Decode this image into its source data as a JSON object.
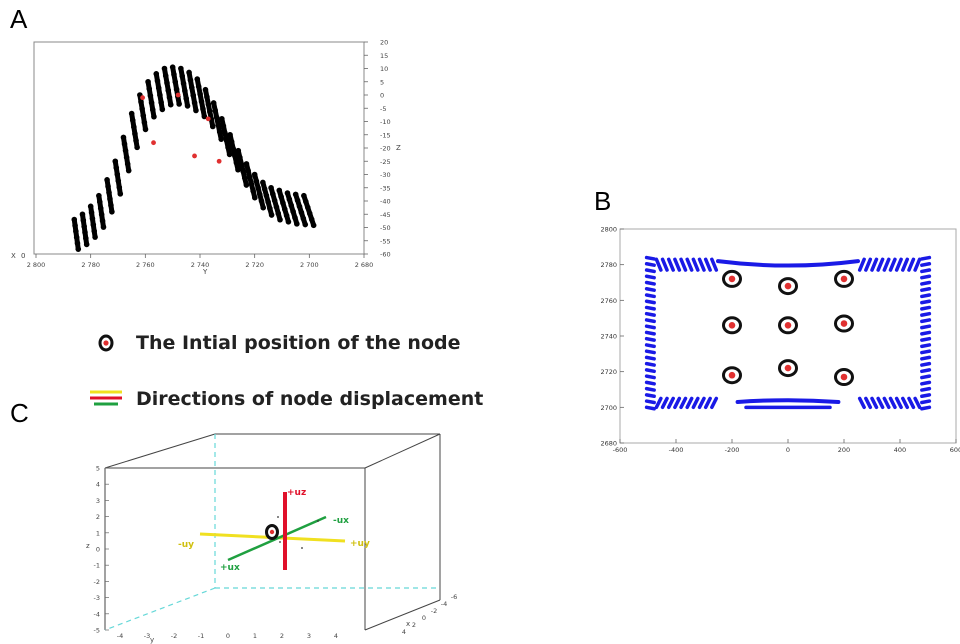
{
  "panels": {
    "a": "A",
    "b": "B",
    "c": "C"
  },
  "legend": {
    "initial_position": "The Intial position of the node",
    "displacement": "Directions of node displacement"
  },
  "chart_data": [
    {
      "type": "scatter",
      "panel": "A",
      "xlabel": "Y",
      "ylabel": "Z",
      "x_axis_tag": "X",
      "x_axis_tag_value": "0",
      "xlim": [
        2800,
        2680
      ],
      "ylim": [
        -60,
        20
      ],
      "xticks": [
        "2 800",
        "2 780",
        "2 760",
        "2 740",
        "2 720",
        "2 700",
        "2 680"
      ],
      "yticks": [
        "20",
        "15",
        "10",
        "5",
        "0",
        "-5",
        "-10",
        "-15",
        "-20",
        "-25",
        "-30",
        "-35",
        "-40",
        "-45",
        "-50",
        "-55",
        "-60"
      ],
      "grid": false,
      "series": [
        {
          "color": "#000000",
          "values": [
            [
              2786,
              -47
            ],
            [
              2783,
              -45
            ],
            [
              2780,
              -42
            ],
            [
              2777,
              -38
            ],
            [
              2774,
              -32
            ],
            [
              2771,
              -25
            ],
            [
              2768,
              -16
            ],
            [
              2765,
              -7
            ],
            [
              2762,
              0
            ],
            [
              2759,
              5
            ],
            [
              2756,
              8
            ],
            [
              2753,
              10
            ],
            [
              2750,
              10.5
            ],
            [
              2747,
              10
            ],
            [
              2744,
              8.5
            ],
            [
              2741,
              6
            ],
            [
              2738,
              2
            ],
            [
              2735,
              -3
            ],
            [
              2732,
              -9
            ],
            [
              2729,
              -15
            ],
            [
              2726,
              -21
            ],
            [
              2723,
              -26
            ],
            [
              2720,
              -30
            ],
            [
              2717,
              -33
            ],
            [
              2714,
              -35
            ],
            [
              2711,
              -36
            ],
            [
              2708,
              -37
            ],
            [
              2705,
              -37.5
            ],
            [
              2702,
              -38
            ]
          ]
        },
        {
          "color": "#e03030",
          "name_hidden": true,
          "values": [
            [
              2761,
              -1
            ],
            [
              2748,
              0
            ],
            [
              2737,
              -9
            ],
            [
              2757,
              -18
            ],
            [
              2742,
              -23
            ],
            [
              2733,
              -25
            ]
          ]
        }
      ]
    },
    {
      "type": "scatter",
      "panel": "B",
      "xlim": [
        -600,
        600
      ],
      "ylim": [
        2680,
        2800
      ],
      "xticks": [
        "-600",
        "-400",
        "-200",
        "0",
        "200",
        "400",
        "600"
      ],
      "yticks": [
        "2800",
        "2780",
        "2760",
        "2740",
        "2720",
        "2700",
        "2680"
      ],
      "grid": false,
      "boundary_color": "#1a1ae6",
      "nodes": [
        {
          "x": -200,
          "y": 2772
        },
        {
          "x": 0,
          "y": 2768
        },
        {
          "x": 200,
          "y": 2772
        },
        {
          "x": -200,
          "y": 2746
        },
        {
          "x": 0,
          "y": 2746
        },
        {
          "x": 200,
          "y": 2747
        },
        {
          "x": -200,
          "y": 2718
        },
        {
          "x": 0,
          "y": 2722
        },
        {
          "x": 200,
          "y": 2717
        }
      ]
    },
    {
      "type": "diagram3d",
      "panel": "C",
      "zticks": [
        "5",
        "4",
        "3",
        "2",
        "1",
        "0",
        "-1",
        "-2",
        "-3",
        "-4",
        "-5"
      ],
      "zlabel": "z",
      "xticks_bottom": [
        "-4",
        "-3",
        "-2",
        "-1",
        "0",
        "1",
        "2",
        "3",
        "4"
      ],
      "xlabel_bottom": "y",
      "xticks_right": [
        "-6",
        "-4",
        "-2",
        "0",
        "2",
        "4"
      ],
      "xlabel_right": "x",
      "labels": {
        "uz": "+uz",
        "neg_ux": "-ux",
        "pos_ux": "+ux",
        "neg_uy": "-uy",
        "pos_uy": "+uy"
      },
      "colors": {
        "uz": "#e0102a",
        "ux": "#1fa040",
        "uy": "#f0e020",
        "guide": "#66d8d8"
      }
    }
  ]
}
